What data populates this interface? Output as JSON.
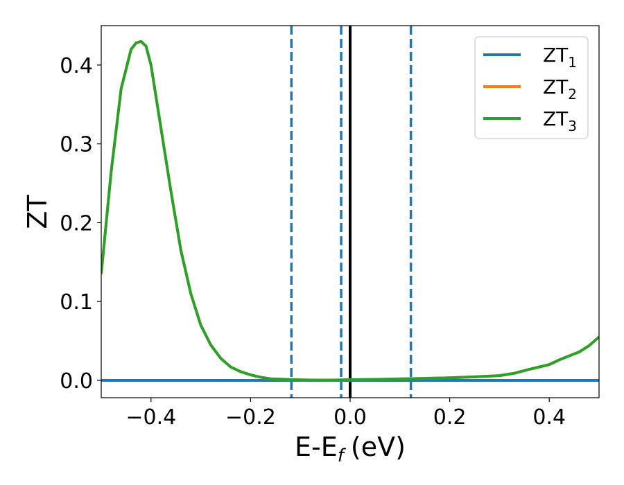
{
  "chart_data": {
    "type": "line",
    "xlabel": "E-E",
    "xlabel_sub": "f",
    "xlabel_unit": "(eV)",
    "ylabel": "ZT",
    "xlim": [
      -0.5,
      0.5
    ],
    "ylim": [
      -0.022,
      0.45
    ],
    "grid": false,
    "legend_position": "top-right",
    "x_ticks": [
      -0.4,
      -0.2,
      0.0,
      0.2,
      0.4
    ],
    "x_tick_labels": [
      "−0.4",
      "−0.2",
      "0.0",
      "0.2",
      "0.4"
    ],
    "y_ticks": [
      0.0,
      0.1,
      0.2,
      0.3,
      0.4
    ],
    "y_tick_labels": [
      "0.0",
      "0.1",
      "0.2",
      "0.3",
      "0.4"
    ],
    "vertical_lines": [
      {
        "x": -0.118,
        "style": "dashed",
        "color": "#1f77b4"
      },
      {
        "x": -0.018,
        "style": "dashed",
        "color": "#1f77b4"
      },
      {
        "x": 0.0,
        "style": "solid",
        "color": "#000000"
      },
      {
        "x": 0.122,
        "style": "dashed",
        "color": "#1f77b4"
      }
    ],
    "series": [
      {
        "name": "ZT",
        "name_sub": "1",
        "color": "#1f77b4",
        "x": [
          -0.5,
          0.5
        ],
        "y": [
          0.0,
          0.0
        ]
      },
      {
        "name": "ZT",
        "name_sub": "2",
        "color": "#ff7f0e",
        "x": [
          -0.5,
          -0.48,
          -0.46,
          -0.44,
          -0.43,
          -0.42,
          -0.41,
          -0.4,
          -0.38,
          -0.36,
          -0.34,
          -0.32,
          -0.3,
          -0.28,
          -0.26,
          -0.24,
          -0.22,
          -0.2,
          -0.18,
          -0.16,
          -0.14,
          -0.12,
          -0.1,
          -0.08,
          -0.06,
          -0.04,
          -0.02,
          0.0,
          0.05,
          0.1,
          0.15,
          0.2,
          0.25,
          0.3,
          0.33,
          0.36,
          0.38,
          0.4,
          0.42,
          0.44,
          0.46,
          0.48,
          0.5
        ],
        "y": [
          0.135,
          0.265,
          0.37,
          0.42,
          0.428,
          0.43,
          0.424,
          0.4,
          0.32,
          0.24,
          0.165,
          0.11,
          0.07,
          0.045,
          0.028,
          0.017,
          0.011,
          0.007,
          0.004,
          0.002,
          0.0015,
          0.001,
          0.0006,
          0.0004,
          0.0003,
          0.0003,
          0.0005,
          0.0008,
          0.0012,
          0.0018,
          0.0025,
          0.0033,
          0.0045,
          0.006,
          0.009,
          0.014,
          0.017,
          0.02,
          0.026,
          0.031,
          0.036,
          0.044,
          0.055
        ]
      },
      {
        "name": "ZT",
        "name_sub": "3",
        "color": "#2ca02c",
        "x": [
          -0.5,
          -0.48,
          -0.46,
          -0.44,
          -0.43,
          -0.42,
          -0.41,
          -0.4,
          -0.38,
          -0.36,
          -0.34,
          -0.32,
          -0.3,
          -0.28,
          -0.26,
          -0.24,
          -0.22,
          -0.2,
          -0.18,
          -0.16,
          -0.14,
          -0.12,
          -0.1,
          -0.08,
          -0.06,
          -0.04,
          -0.02,
          0.0,
          0.05,
          0.1,
          0.15,
          0.2,
          0.25,
          0.3,
          0.33,
          0.36,
          0.38,
          0.4,
          0.42,
          0.44,
          0.46,
          0.48,
          0.5
        ],
        "y": [
          0.135,
          0.265,
          0.37,
          0.42,
          0.428,
          0.43,
          0.424,
          0.4,
          0.32,
          0.24,
          0.165,
          0.11,
          0.07,
          0.045,
          0.028,
          0.017,
          0.011,
          0.007,
          0.004,
          0.002,
          0.0015,
          0.001,
          0.0006,
          0.0004,
          0.0003,
          0.0003,
          0.0005,
          0.0008,
          0.0012,
          0.0018,
          0.0025,
          0.0033,
          0.0045,
          0.006,
          0.009,
          0.014,
          0.017,
          0.02,
          0.026,
          0.031,
          0.036,
          0.044,
          0.055
        ]
      }
    ]
  }
}
